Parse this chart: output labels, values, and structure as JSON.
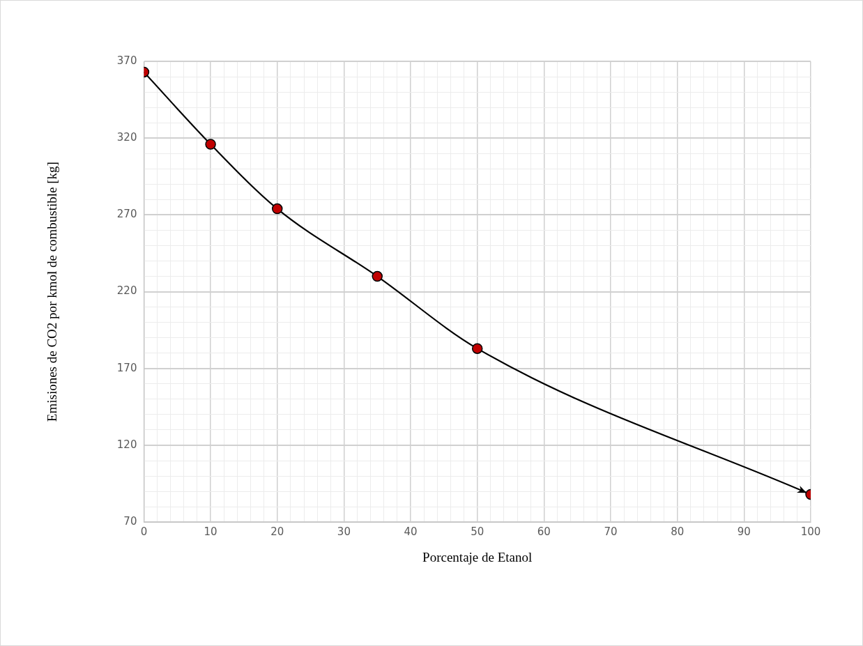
{
  "chart_data": {
    "type": "line",
    "xlabel": "Porcentaje de Etanol",
    "ylabel": "Emisiones de CO2 por kmol de combustible [kg]",
    "x": [
      0,
      10,
      20,
      35,
      50,
      100
    ],
    "series": [
      {
        "color": "#c00000",
        "values": [
          363,
          316,
          274,
          230,
          183,
          88
        ]
      }
    ],
    "marker": "circle",
    "grid": true,
    "legend": false,
    "xlim": [
      0,
      100
    ],
    "xticks": [
      0,
      {
        "value": 2,
        "label": null
      },
      {
        "value": 4,
        "label": null
      },
      {
        "value": 6,
        "label": null
      },
      {
        "value": 8,
        "label": null
      },
      10,
      {
        "value": 12,
        "label": null
      },
      {
        "value": 14,
        "label": null
      },
      {
        "value": 16,
        "label": null
      },
      {
        "value": 18,
        "label": null
      },
      20,
      {
        "value": 22,
        "label": null
      },
      {
        "value": 24,
        "label": null
      },
      {
        "value": 26,
        "label": null
      },
      {
        "value": 28,
        "label": null
      },
      30,
      {
        "value": 32,
        "label": null
      },
      {
        "value": 34,
        "label": null
      },
      {
        "value": 36,
        "label": null
      },
      {
        "value": 38,
        "label": null
      },
      40,
      {
        "value": 42,
        "label": null
      },
      {
        "value": 44,
        "label": null
      },
      {
        "value": 46,
        "label": null
      },
      {
        "value": 48,
        "label": null
      },
      50,
      {
        "value": 52,
        "label": null
      },
      {
        "value": 54,
        "label": null
      },
      {
        "value": 56,
        "label": null
      },
      {
        "value": 58,
        "label": null
      },
      60,
      {
        "value": 62,
        "label": null
      },
      {
        "value": 64,
        "label": null
      },
      {
        "value": 66,
        "label": null
      },
      {
        "value": 68,
        "label": null
      },
      70,
      {
        "value": 72,
        "label": null
      },
      {
        "value": 74,
        "label": null
      },
      {
        "value": 76,
        "label": null
      },
      {
        "value": 78,
        "label": null
      },
      80,
      {
        "value": 82,
        "label": null
      },
      {
        "value": 84,
        "label": null
      },
      {
        "value": 86,
        "label": null
      },
      {
        "value": 88,
        "label": null
      },
      90,
      {
        "value": 92,
        "label": null
      },
      {
        "value": 94,
        "label": null
      },
      {
        "value": 96,
        "label": null
      },
      {
        "value": 98,
        "label": null
      },
      100
    ],
    "ylim": [
      70,
      370
    ],
    "yticks": [
      70,
      {
        "value": 80,
        "label": null
      },
      {
        "value": 90,
        "label": null
      },
      {
        "value": 100,
        "label": null
      },
      {
        "value": 110,
        "label": null
      },
      120,
      {
        "value": 130,
        "label": null
      },
      {
        "value": 140,
        "label": null
      },
      {
        "value": 150,
        "label": null
      },
      {
        "value": 160,
        "label": null
      },
      170,
      {
        "value": 180,
        "label": null
      },
      {
        "value": 190,
        "label": null
      },
      {
        "value": 200,
        "label": null
      },
      {
        "value": 210,
        "label": null
      },
      220,
      {
        "value": 230,
        "label": null
      },
      {
        "value": 240,
        "label": null
      },
      {
        "value": 250,
        "label": null
      },
      {
        "value": 260,
        "label": null
      },
      270,
      {
        "value": 280,
        "label": null
      },
      {
        "value": 290,
        "label": null
      },
      {
        "value": 300,
        "label": null
      },
      {
        "value": 310,
        "label": null
      },
      320,
      {
        "value": 330,
        "label": null
      },
      {
        "value": 340,
        "label": null
      },
      {
        "value": 350,
        "label": null
      },
      {
        "value": 360,
        "label": null
      },
      370
    ]
  }
}
